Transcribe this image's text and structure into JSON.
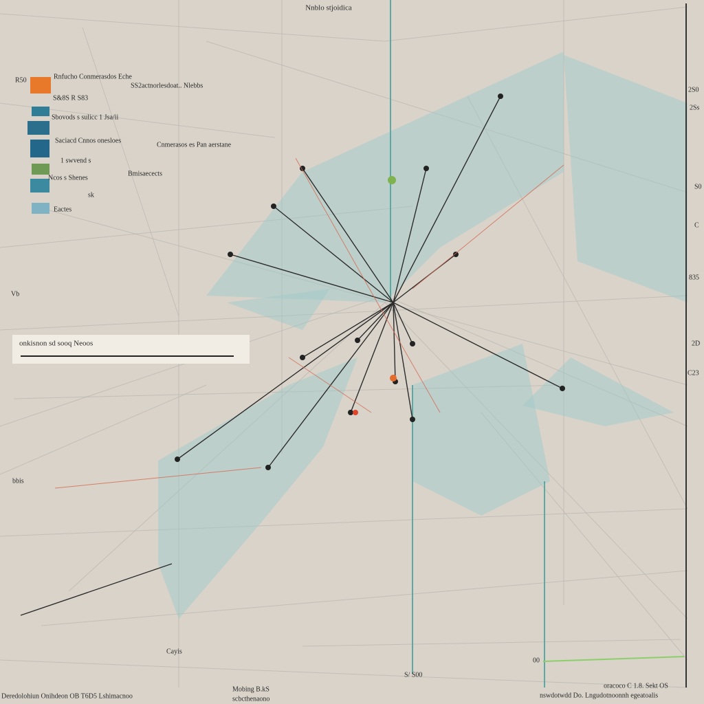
{
  "header": {
    "title": "Nnblo stjoidica"
  },
  "legend": {
    "items": [
      "R50",
      "Rnfucho Conmerasdos Eche",
      "SS2actnorlesdoat.. Nlebbs",
      "S&8S R S83",
      "Sbovods s sulicc 1 Jsa/ii",
      "Saciacd Cnnos onesloes",
      "Cnmerasos es Pan aerstane",
      "1 swvend s",
      "Bmisaecects",
      "Ncos s Shenes",
      "sk",
      "Eactes"
    ]
  },
  "search": {
    "placeholder": "onkisnon sd sooq Neoos"
  },
  "left_labels": [
    "Vb",
    "bbis"
  ],
  "right_axis": {
    "labels": [
      "2S0",
      "2Ss",
      "S0",
      "C",
      "835",
      "2D",
      "C23"
    ]
  },
  "plot_labels": [
    "Cayis",
    "S/ S00",
    "00"
  ],
  "footer": {
    "left": "Deredolohiun Onihdeon OB T6D5 Lshimacnoo",
    "center": [
      "Mobing B.kS",
      "scbcthenaono"
    ],
    "right": [
      "oracoco C 1.8. Sekt OS",
      "nswdotwdd Do. Lngudotnoonnh egeatoalis"
    ]
  }
}
